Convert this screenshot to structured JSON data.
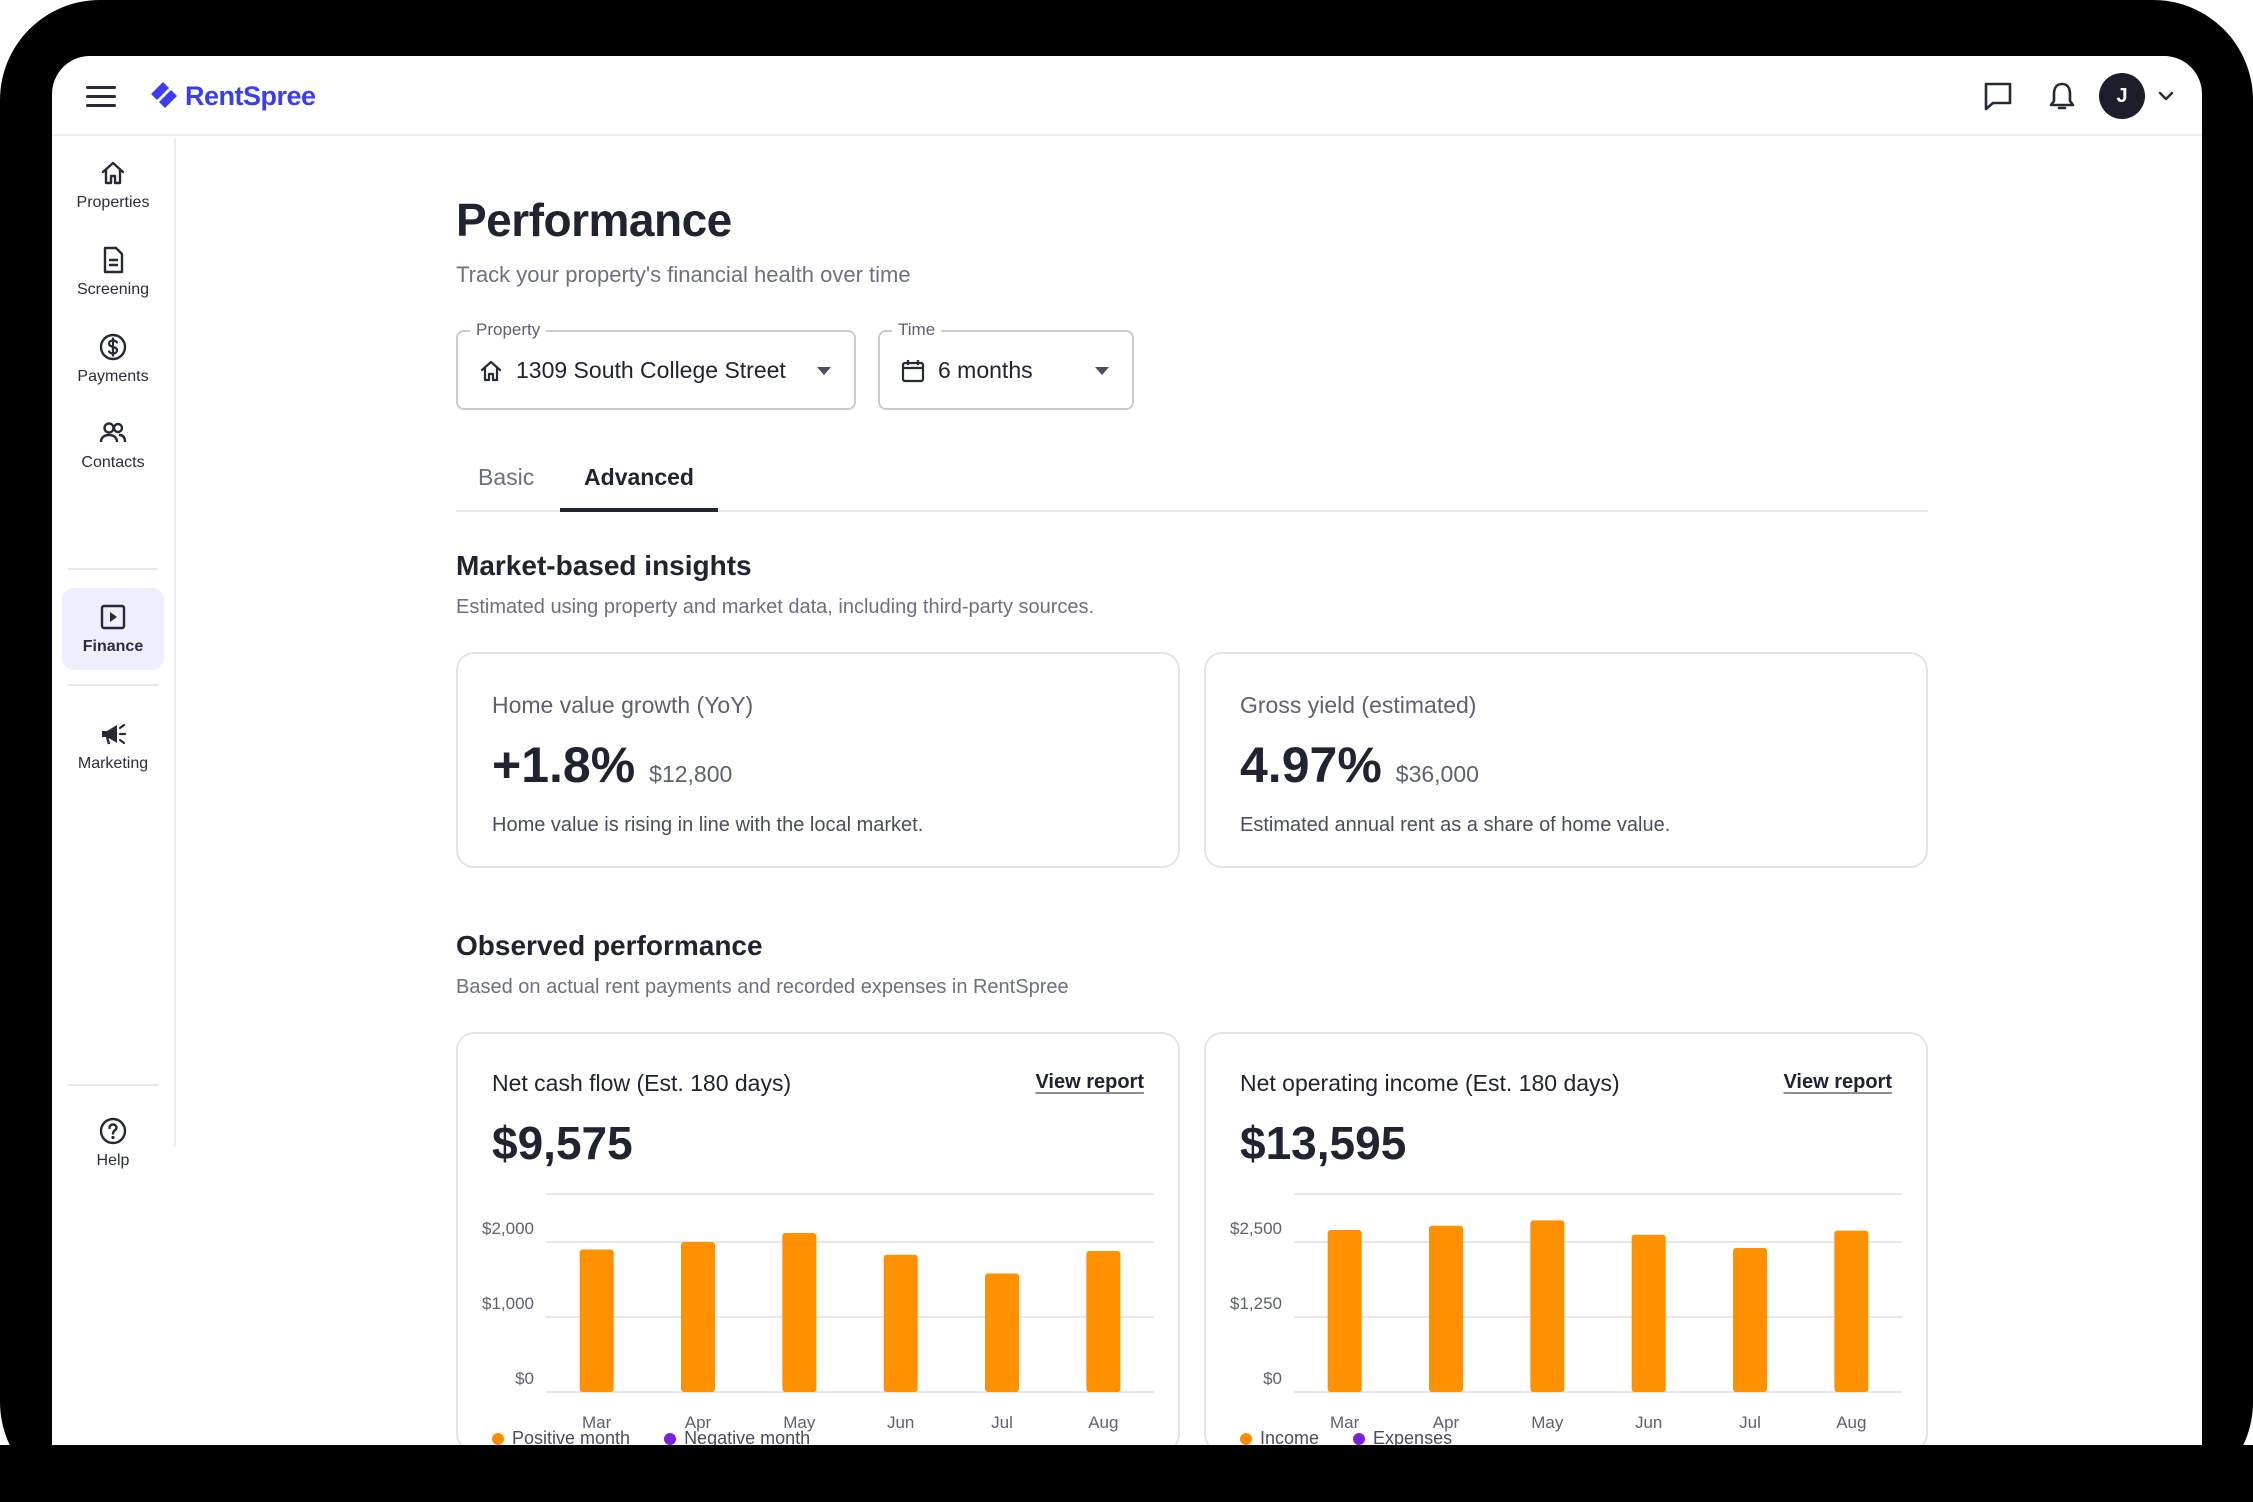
{
  "app": {
    "brand": "RentSpree",
    "avatar_initial": "J",
    "brand_color": "#3b3df2"
  },
  "sidebar": {
    "items": [
      {
        "label": "Properties",
        "icon": "home-icon",
        "active": false
      },
      {
        "label": "Screening",
        "icon": "document-icon",
        "active": false
      },
      {
        "label": "Payments",
        "icon": "dollar-circle-icon",
        "active": false
      },
      {
        "label": "Contacts",
        "icon": "people-icon",
        "active": false
      },
      {
        "label": "Finance",
        "icon": "play-square-icon",
        "active": true
      },
      {
        "label": "Marketing",
        "icon": "megaphone-icon",
        "active": false
      }
    ],
    "help_label": "Help"
  },
  "page": {
    "title": "Performance",
    "subtitle": "Track your property's financial health over time"
  },
  "filters": {
    "property": {
      "label": "Property",
      "value": "1309 South College Street"
    },
    "time": {
      "label": "Time",
      "value": "6 months"
    }
  },
  "tabs": [
    {
      "label": "Basic",
      "active": false
    },
    {
      "label": "Advanced",
      "active": true
    }
  ],
  "market_insights": {
    "title": "Market-based insights",
    "subtitle": "Estimated using property and market data, including third-party sources.",
    "cards": [
      {
        "title": "Home value growth (YoY)",
        "value": "+1.8%",
        "secondary": "$12,800",
        "description": "Home value is rising in line with the local market."
      },
      {
        "title": "Gross yield (estimated)",
        "value": "4.97%",
        "secondary": "$36,000",
        "description": "Estimated annual rent as a share of home value."
      }
    ]
  },
  "observed": {
    "title": "Observed performance",
    "subtitle": "Based on actual rent payments and recorded expenses in RentSpree",
    "cards": [
      {
        "title": "Net cash flow (Est. 180 days)",
        "link": "View report",
        "value": "$9,575",
        "legend": [
          {
            "label": "Positive month",
            "color": "#ff8c00"
          },
          {
            "label": "Negative month",
            "color": "#7a22e0"
          }
        ]
      },
      {
        "title": "Net operating income (Est. 180 days)",
        "link": "View report",
        "value": "$13,595",
        "legend": [
          {
            "label": "Income",
            "color": "#ff8c00"
          },
          {
            "label": "Expenses",
            "color": "#7a22e0"
          }
        ]
      }
    ]
  },
  "chart_data": [
    {
      "type": "bar",
      "categories": [
        "Mar",
        "Apr",
        "May",
        "Jun",
        "Jul",
        "Aug"
      ],
      "values": [
        1900,
        2000,
        2120,
        1830,
        1580,
        1880
      ],
      "yticks": [
        "$0",
        "$1,000",
        "$2,000"
      ],
      "ytick_values": [
        0,
        1000,
        2000
      ],
      "ylim": [
        0,
        2400
      ],
      "bar_color": "#ff9100",
      "grid": true
    },
    {
      "type": "bar",
      "categories": [
        "Mar",
        "Apr",
        "May",
        "Jun",
        "Jul",
        "Aug"
      ],
      "values": [
        2700,
        2770,
        2860,
        2620,
        2400,
        2690
      ],
      "yticks": [
        "$0",
        "$1,250",
        "$2,500"
      ],
      "ytick_values": [
        0,
        1250,
        2500
      ],
      "ylim": [
        0,
        3000
      ],
      "bar_color": "#ff9100",
      "grid": true
    }
  ]
}
